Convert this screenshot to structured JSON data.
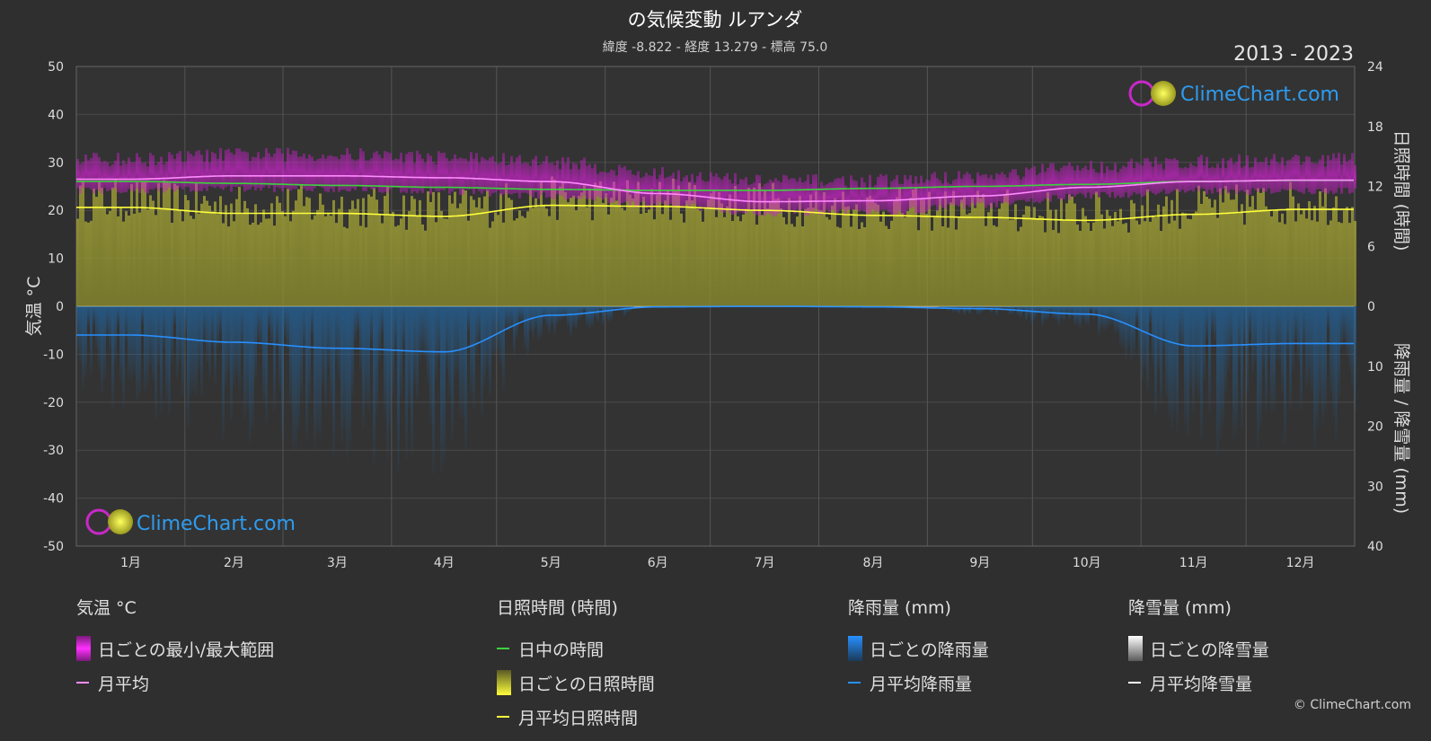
{
  "title": "の気候変動 ルアンダ",
  "subtitle": "緯度 -8.822 - 経度 13.279 - 標高 75.0",
  "year_range": "2013 - 2023",
  "brand": "ClimeChart.com",
  "copyright": "© ClimeChart.com",
  "colors": {
    "background": "#2f2f2f",
    "temp_range": "#d21ed2",
    "temp_avg": "#ff8cff",
    "daylight": "#3cd23c",
    "sunshine_daily": "#9a9a30",
    "sunshine_avg": "#ffff3c",
    "rain": "#1e78c8",
    "rain_avg": "#2890ff",
    "snow": "#ffffff"
  },
  "chart_data": {
    "type": "area",
    "x_labels": [
      "1月",
      "2月",
      "3月",
      "4月",
      "5月",
      "6月",
      "7月",
      "8月",
      "9月",
      "10月",
      "11月",
      "12月"
    ],
    "axes": {
      "left": {
        "label": "気温 °C",
        "min": -50,
        "max": 50,
        "ticks": [
          "50",
          "40",
          "30",
          "20",
          "10",
          "0",
          "-10",
          "-20",
          "-30",
          "-40",
          "-50"
        ]
      },
      "right_top": {
        "label": "日照時間 (時間)",
        "min": 0,
        "max": 24,
        "ticks": [
          "24",
          "18",
          "12",
          "6",
          "0"
        ]
      },
      "right_bottom": {
        "label": "降雨量 / 降雪量 (mm)",
        "min": 0,
        "max": 40,
        "ticks": [
          "10",
          "20",
          "30",
          "40"
        ]
      }
    },
    "grid": true,
    "series": [
      {
        "name": "月平均",
        "unit": "°C",
        "values": [
          26.5,
          27.2,
          27.2,
          26.8,
          26.0,
          23.5,
          21.8,
          22.0,
          23.0,
          24.8,
          26.0,
          26.3
        ]
      },
      {
        "name": "日中の時間",
        "unit": "時間",
        "values": [
          12.5,
          12.3,
          12.1,
          11.9,
          11.7,
          11.6,
          11.6,
          11.8,
          12.0,
          12.2,
          12.5,
          12.6
        ]
      },
      {
        "name": "月平均日照時間",
        "unit": "時間",
        "values": [
          9.9,
          9.3,
          9.3,
          9.0,
          10.1,
          10.0,
          9.6,
          9.1,
          8.9,
          8.6,
          9.2,
          9.7
        ]
      },
      {
        "name": "月平均降雨量",
        "unit": "mm",
        "values": [
          4.8,
          6.0,
          7.0,
          7.6,
          1.5,
          0.1,
          0.0,
          0.1,
          0.4,
          1.3,
          6.6,
          6.2
        ]
      },
      {
        "name": "日ごとの最小/最大範囲",
        "unit": "°C",
        "min_values": [
          24.0,
          24.5,
          24.5,
          24.0,
          23.0,
          21.0,
          19.5,
          19.5,
          21.0,
          23.0,
          24.0,
          24.0
        ],
        "max_values": [
          30.0,
          31.0,
          31.0,
          30.5,
          29.5,
          27.0,
          25.5,
          25.5,
          26.5,
          28.5,
          29.5,
          30.0
        ]
      }
    ]
  },
  "legend": {
    "temp": {
      "header": "気温 °C",
      "items": [
        "日ごとの最小/最大範囲",
        "月平均"
      ]
    },
    "sun": {
      "header": "日照時間 (時間)",
      "items": [
        "日中の時間",
        "日ごとの日照時間",
        "月平均日照時間"
      ]
    },
    "rain": {
      "header": "降雨量 (mm)",
      "items": [
        "日ごとの降雨量",
        "月平均降雨量"
      ]
    },
    "snow": {
      "header": "降雪量 (mm)",
      "items": [
        "日ごとの降雪量",
        "月平均降雪量"
      ]
    }
  }
}
